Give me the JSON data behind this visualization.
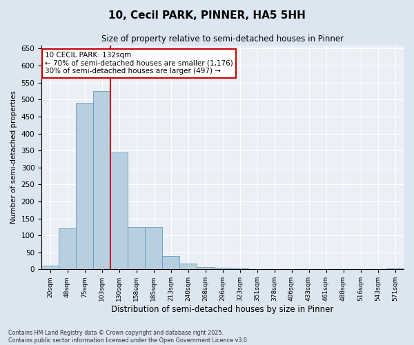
{
  "title": "10, Cecil PARK, PINNER, HA5 5HH",
  "subtitle": "Size of property relative to semi-detached houses in Pinner",
  "xlabel": "Distribution of semi-detached houses by size in Pinner",
  "ylabel": "Number of semi-detached properties",
  "bins": [
    "20sqm",
    "48sqm",
    "75sqm",
    "103sqm",
    "130sqm",
    "158sqm",
    "185sqm",
    "213sqm",
    "240sqm",
    "268sqm",
    "296sqm",
    "323sqm",
    "351sqm",
    "378sqm",
    "406sqm",
    "433sqm",
    "461sqm",
    "488sqm",
    "516sqm",
    "543sqm",
    "571sqm"
  ],
  "values": [
    10,
    120,
    490,
    525,
    345,
    125,
    125,
    40,
    16,
    7,
    5,
    2,
    1,
    0,
    1,
    0,
    0,
    0,
    0,
    0,
    3
  ],
  "bar_color": "#b8cfe0",
  "bar_edge_color": "#6699bb",
  "vline_x": 3.5,
  "vline_color": "#cc0000",
  "annotation_title": "10 CECIL PARK: 132sqm",
  "annotation_line1": "← 70% of semi-detached houses are smaller (1,176)",
  "annotation_line2": "30% of semi-detached houses are larger (497) →",
  "annotation_box_color": "#cc0000",
  "ylim": [
    0,
    660
  ],
  "yticks": [
    0,
    50,
    100,
    150,
    200,
    250,
    300,
    350,
    400,
    450,
    500,
    550,
    600,
    650
  ],
  "footnote1": "Contains HM Land Registry data © Crown copyright and database right 2025.",
  "footnote2": "Contains public sector information licensed under the Open Government Licence v3.0.",
  "bg_color": "#dce6f0",
  "plot_bg_color": "#eaf0f6"
}
